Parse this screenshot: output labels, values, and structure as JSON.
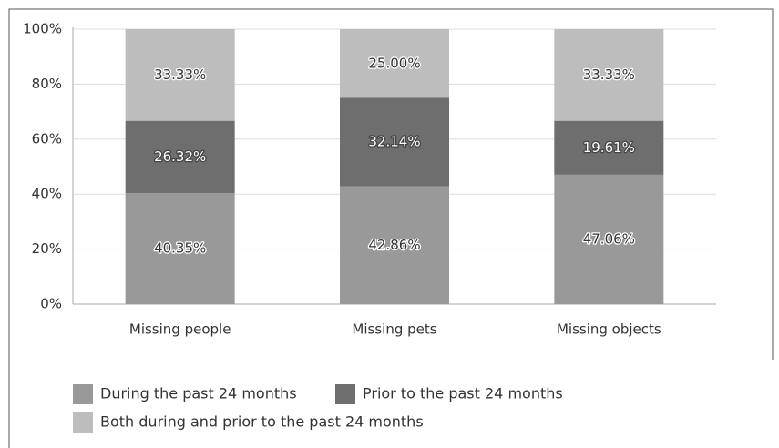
{
  "chart_data": {
    "type": "bar",
    "stacked": true,
    "categories": [
      "Missing people",
      "Missing pets",
      "Missing objects"
    ],
    "series": [
      {
        "name": "During the past 24 months",
        "color": "#999999",
        "values": [
          40.35,
          42.86,
          47.06
        ],
        "value_labels": [
          "40.35%",
          "42.86%",
          "47.06%"
        ]
      },
      {
        "name": "Prior to the past 24 months",
        "color": "#6e6e6e",
        "values": [
          26.32,
          32.14,
          19.61
        ],
        "value_labels": [
          "26.32%",
          "32.14%",
          "19.61%"
        ]
      },
      {
        "name": "Both during and prior to the past 24 months",
        "color": "#bdbdbd",
        "values": [
          33.33,
          25.0,
          33.33
        ],
        "value_labels": [
          "33.33%",
          "25.00%",
          "33.33%"
        ]
      }
    ],
    "ylim": [
      0,
      100
    ],
    "yticks": [
      {
        "value": 0,
        "label": "0%"
      },
      {
        "value": 20,
        "label": "20%"
      },
      {
        "value": 40,
        "label": "40%"
      },
      {
        "value": 60,
        "label": "60%"
      },
      {
        "value": 80,
        "label": "80%"
      },
      {
        "value": 100,
        "label": "100%"
      }
    ],
    "grid": true
  }
}
